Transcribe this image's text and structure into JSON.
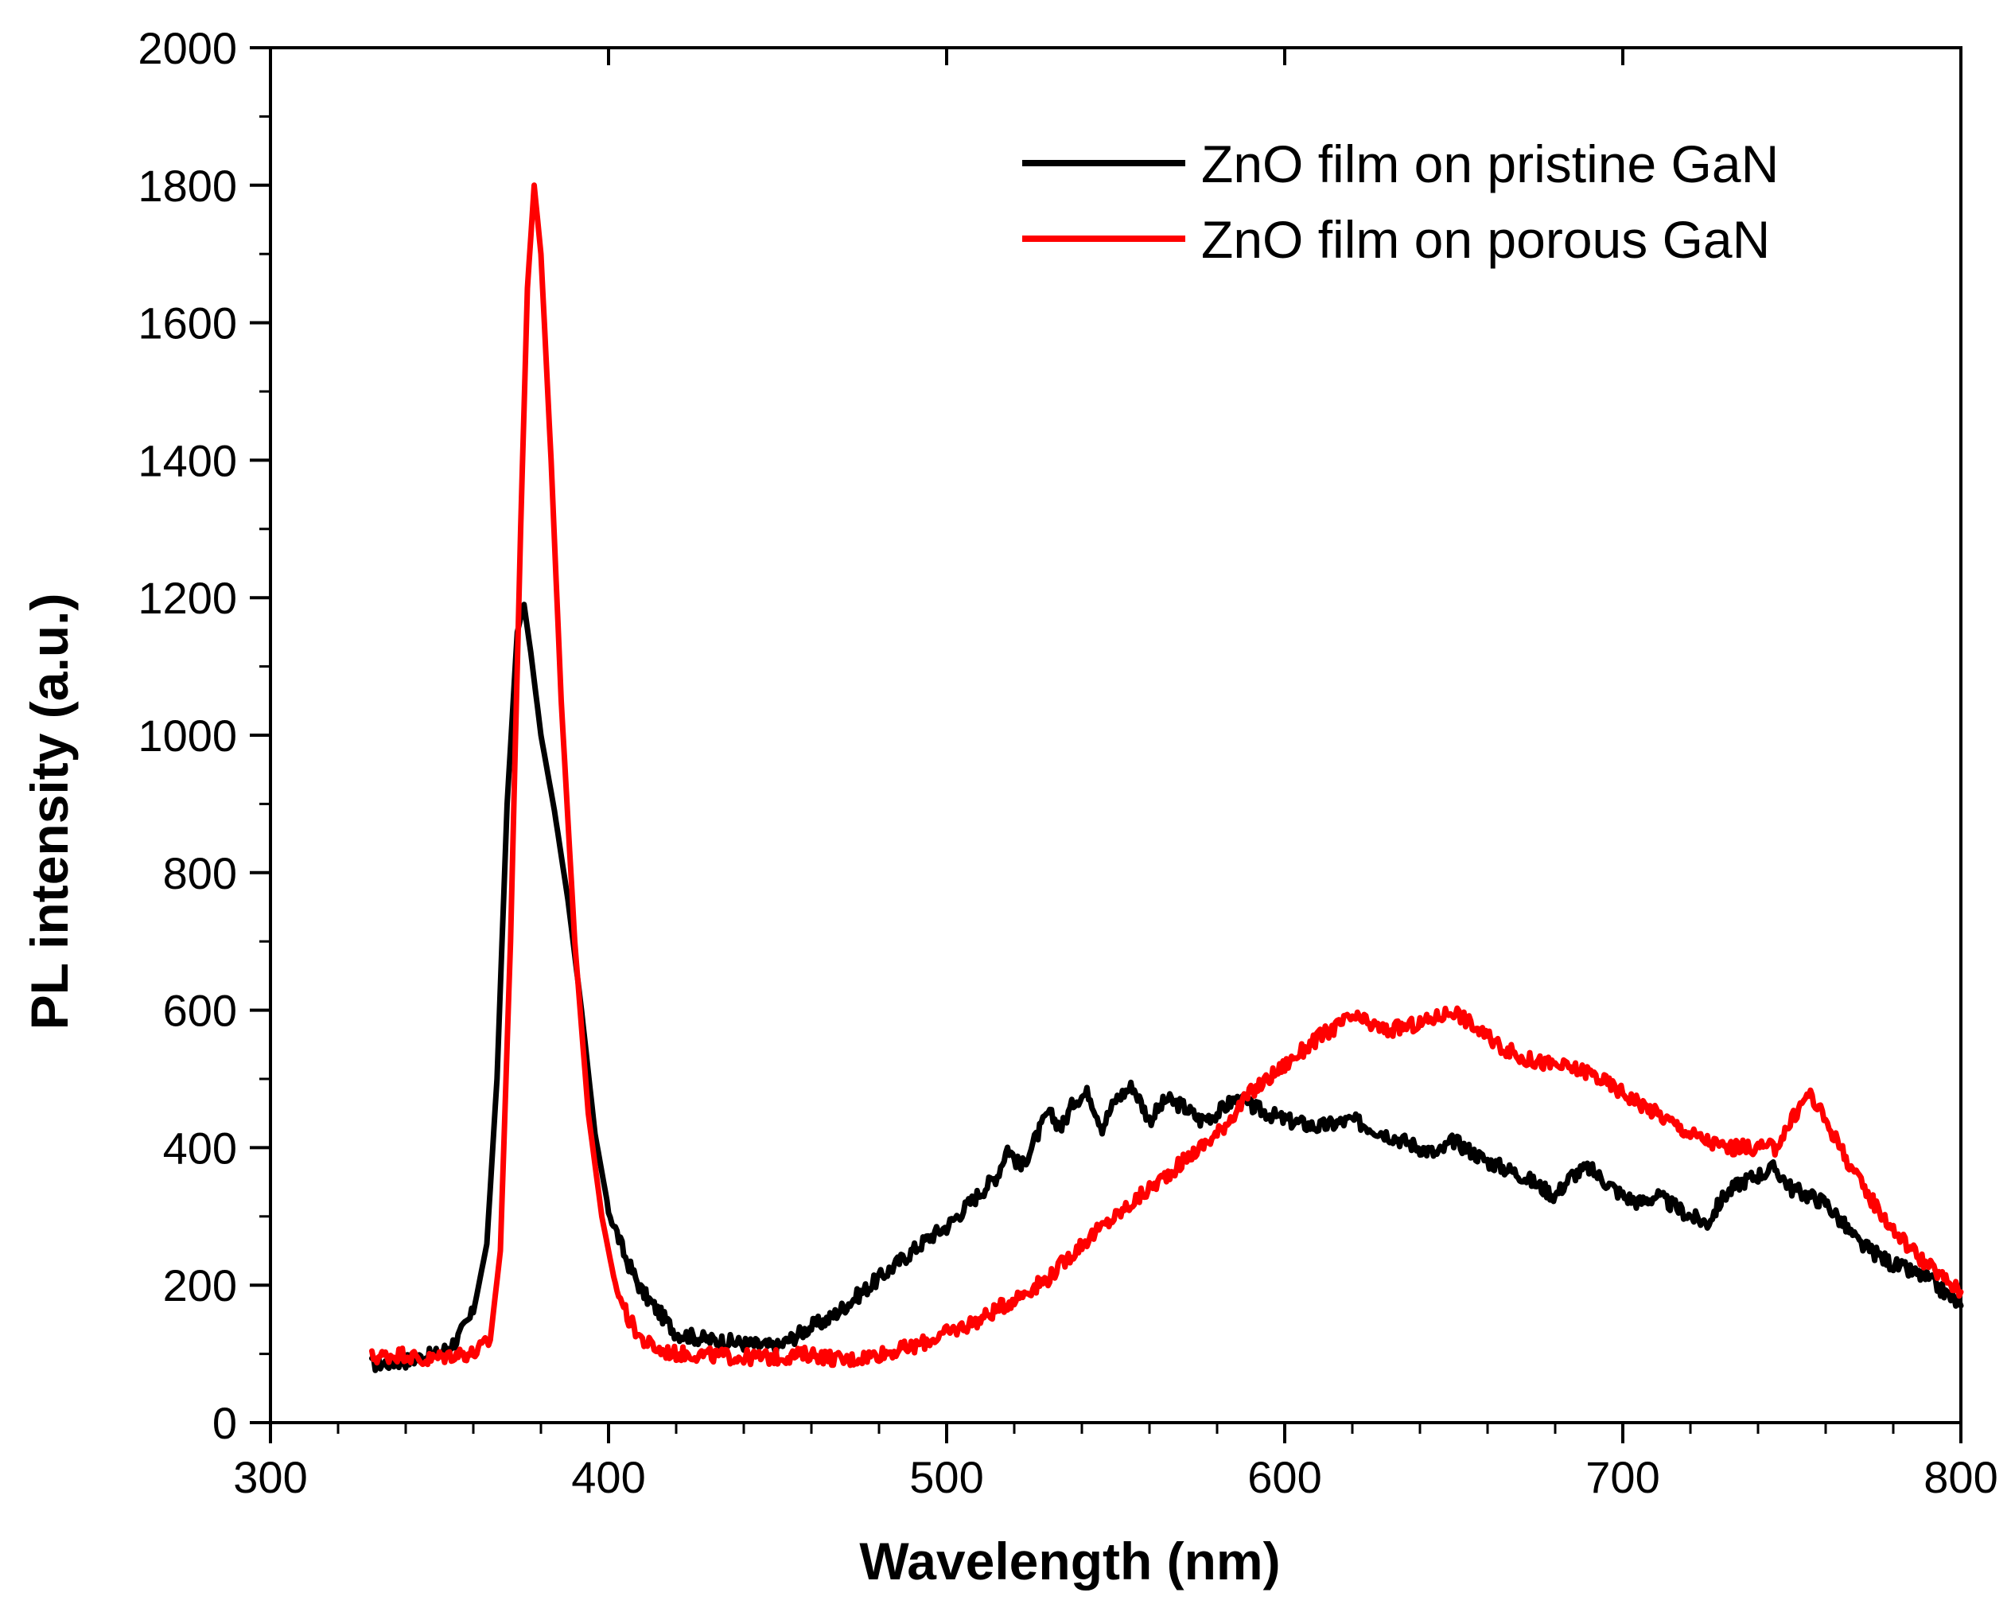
{
  "chart_data": {
    "type": "line",
    "title": "",
    "xlabel": "Wavelength (nm)",
    "ylabel": "PL intensity (a.u.)",
    "xlim": [
      300,
      800
    ],
    "ylim": [
      0,
      2000
    ],
    "x_ticks": [
      300,
      400,
      500,
      600,
      700,
      800
    ],
    "x_tick_labels": [
      "300",
      "400",
      "500",
      "600",
      "700",
      "800"
    ],
    "y_ticks": [
      0,
      200,
      400,
      600,
      800,
      1000,
      1200,
      1400,
      1600,
      1800,
      2000
    ],
    "y_tick_labels": [
      "0",
      "200",
      "400",
      "600",
      "800",
      "1000",
      "1200",
      "1400",
      "1600",
      "1800",
      "2000"
    ],
    "grid": false,
    "legend_position": "top-right",
    "series": [
      {
        "name": "ZnO film on pristine GaN",
        "color": "#000000",
        "x": [
          330,
          340,
          350,
          355,
          360,
          364,
          367,
          370,
          373,
          375,
          377,
          380,
          384,
          388,
          392,
          396,
          400,
          405,
          410,
          415,
          420,
          425,
          430,
          435,
          440,
          445,
          450,
          455,
          460,
          465,
          470,
          475,
          480,
          485,
          490,
          495,
          500,
          505,
          510,
          515,
          518,
          522,
          526,
          530,
          534,
          538,
          542,
          546,
          550,
          555,
          560,
          565,
          570,
          575,
          580,
          585,
          590,
          595,
          600,
          610,
          620,
          630,
          640,
          645,
          650,
          660,
          670,
          680,
          685,
          690,
          700,
          705,
          710,
          720,
          725,
          730,
          735,
          740,
          745,
          750,
          760,
          770,
          780,
          790,
          800
        ],
        "y": [
          85,
          90,
          100,
          120,
          160,
          260,
          500,
          900,
          1150,
          1190,
          1120,
          1000,
          890,
          760,
          600,
          420,
          310,
          240,
          190,
          160,
          130,
          125,
          120,
          118,
          115,
          112,
          110,
          125,
          140,
          150,
          170,
          190,
          210,
          230,
          250,
          270,
          285,
          310,
          335,
          360,
          400,
          370,
          410,
          450,
          430,
          470,
          480,
          430,
          470,
          490,
          440,
          470,
          460,
          440,
          450,
          470,
          460,
          450,
          440,
          430,
          440,
          420,
          400,
          390,
          410,
          380,
          360,
          330,
          360,
          370,
          330,
          320,
          330,
          300,
          290,
          330,
          350,
          360,
          370,
          340,
          320,
          260,
          230,
          210,
          170
        ]
      },
      {
        "name": "ZnO film on porous GaN",
        "color": "#ff0000",
        "x": [
          330,
          340,
          345,
          350,
          355,
          360,
          365,
          368,
          371,
          374,
          376,
          378,
          380,
          383,
          386,
          390,
          394,
          398,
          402,
          406,
          410,
          415,
          420,
          425,
          430,
          440,
          450,
          460,
          470,
          480,
          490,
          500,
          510,
          520,
          530,
          540,
          550,
          560,
          570,
          575,
          580,
          590,
          600,
          610,
          620,
          625,
          630,
          640,
          650,
          660,
          670,
          680,
          690,
          700,
          710,
          720,
          730,
          740,
          745,
          750,
          755,
          760,
          770,
          780,
          790,
          800
        ],
        "y": [
          95,
          100,
          90,
          95,
          100,
          100,
          120,
          250,
          700,
          1300,
          1650,
          1800,
          1700,
          1400,
          1050,
          700,
          450,
          300,
          200,
          150,
          120,
          105,
          100,
          100,
          98,
          95,
          95,
          100,
          90,
          100,
          110,
          130,
          150,
          180,
          210,
          260,
          300,
          340,
          380,
          400,
          420,
          480,
          520,
          560,
          590,
          580,
          570,
          580,
          600,
          560,
          530,
          520,
          510,
          480,
          450,
          420,
          400,
          400,
          400,
          440,
          480,
          440,
          350,
          280,
          230,
          190
        ]
      }
    ]
  }
}
